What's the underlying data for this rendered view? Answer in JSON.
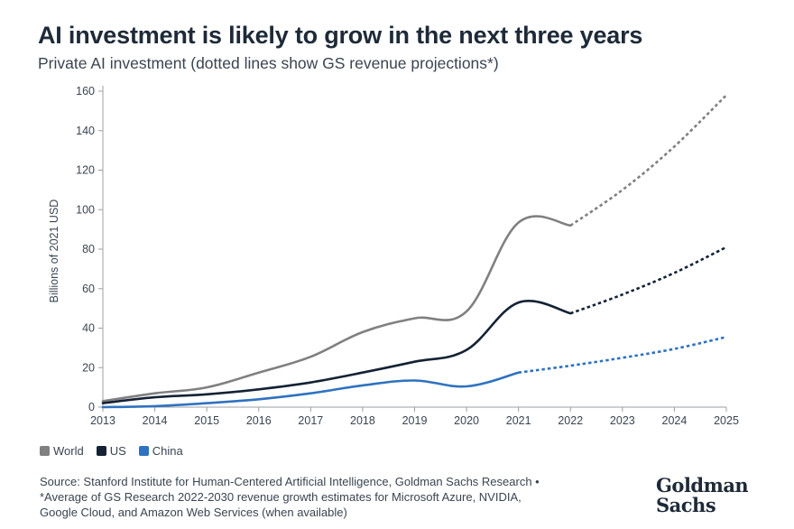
{
  "header": {
    "title": "AI investment is likely to grow in the next three years",
    "subtitle": "Private AI investment (dotted lines show GS revenue projections*)"
  },
  "footer": {
    "source_line1": "Source: Stanford Institute for Human-Centered Artificial Intelligence, Goldman Sachs Research •",
    "source_line2": "*Average of GS Research 2022-2030 revenue growth estimates for Microsoft Azure, NVIDIA,",
    "source_line3": "Google Cloud, and Amazon Web Services (when available)",
    "logo_line1": "Goldman",
    "logo_line2": "Sachs"
  },
  "chart_data": {
    "type": "line",
    "title": "AI investment is likely to grow in the next three years",
    "subtitle": "Private AI investment (dotted lines show GS revenue projections*)",
    "xlabel": "",
    "ylabel": "Billions of 2021 USD",
    "x": [
      "2013",
      "2014",
      "2015",
      "2016",
      "2017",
      "2018",
      "2019",
      "2020",
      "2021",
      "2022",
      "2023",
      "2024",
      "2025"
    ],
    "ylim": [
      0,
      160
    ],
    "yticks": [
      0,
      20,
      40,
      60,
      80,
      100,
      120,
      140,
      160
    ],
    "grid": false,
    "legend_position": "bottom-left",
    "projection_note": "dotted lines show GS revenue projections",
    "series": [
      {
        "name": "World",
        "color": "#808080",
        "values": [
          3,
          7,
          10,
          17.5,
          25.5,
          38,
          45,
          48.5,
          93.5,
          92,
          110,
          132,
          158
        ],
        "projection_start": "2022"
      },
      {
        "name": "US",
        "color": "#152235",
        "values": [
          2,
          5,
          6.5,
          9,
          12.5,
          17.5,
          23,
          29,
          53,
          47.5,
          57,
          68,
          81
        ],
        "projection_start": "2022"
      },
      {
        "name": "China",
        "color": "#2f72c0",
        "values": [
          0,
          0.5,
          2,
          4,
          7,
          11,
          13.5,
          10.5,
          17.5,
          21,
          25,
          29.5,
          35.5
        ],
        "projection_start": "2021"
      }
    ]
  }
}
